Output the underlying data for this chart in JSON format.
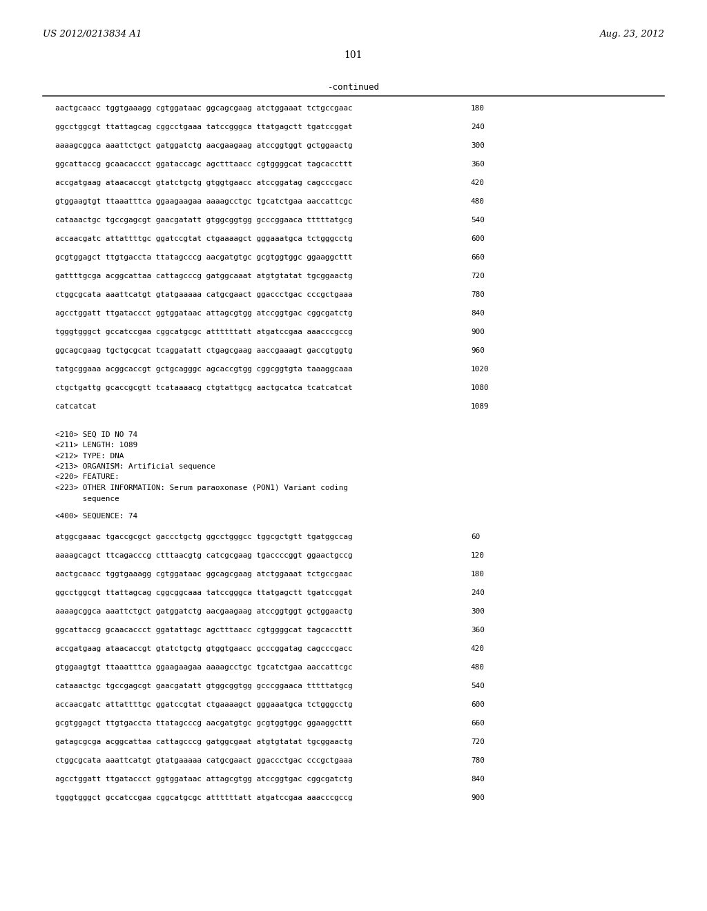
{
  "header_left": "US 2012/0213834 A1",
  "header_right": "Aug. 23, 2012",
  "page_number": "101",
  "continued_label": "-continued",
  "background_color": "#ffffff",
  "text_color": "#000000",
  "sequence_lines_top": [
    [
      "aactgcaacc tggtgaaagg cgtggataac ggcagcgaag atctggaaat tctgccgaac",
      "180"
    ],
    [
      "ggcctggcgt ttattagcag cggcctgaaa tatccgggca ttatgagctt tgatccggat",
      "240"
    ],
    [
      "aaaagcggca aaattctgct gatggatctg aacgaagaag atccggtggt gctggaactg",
      "300"
    ],
    [
      "ggcattaccg gcaacaccct ggataccagc agctttaacc cgtggggcat tagcaccttt",
      "360"
    ],
    [
      "accgatgaag ataacaccgt gtatctgctg gtggtgaacc atccggatag cagcccgacc",
      "420"
    ],
    [
      "gtggaagtgt ttaaatttca ggaagaagaa aaaagcctgc tgcatctgaa aaccattcgc",
      "480"
    ],
    [
      "cataaactgc tgccgagcgt gaacgatatt gtggcggtgg gcccggaaca tttttatgcg",
      "540"
    ],
    [
      "accaacgatc attattttgc ggatccgtat ctgaaaagct gggaaatgca tctgggcctg",
      "600"
    ],
    [
      "gcgtggagct ttgtgaccta ttatagcccg aacgatgtgc gcgtggtggc ggaaggcttt",
      "660"
    ],
    [
      "gattttgcga acggcattaa cattagcccg gatggcaaat atgtgtatat tgcggaactg",
      "720"
    ],
    [
      "ctggcgcata aaattcatgt gtatgaaaaa catgcgaact ggaccctgac cccgctgaaa",
      "780"
    ],
    [
      "agcctggatt ttgataccct ggtggataac attagcgtgg atccggtgac cggcgatctg",
      "840"
    ],
    [
      "tgggtgggct gccatccgaa cggcatgcgc attttttatt atgatccgaa aaacccgccg",
      "900"
    ],
    [
      "ggcagcgaag tgctgcgcat tcaggatatt ctgagcgaag aaccgaaagt gaccgtggtg",
      "960"
    ],
    [
      "tatgcggaaa acggcaccgt gctgcagggc agcaccgtgg cggcggtgta taaaggcaaa",
      "1020"
    ],
    [
      "ctgctgattg gcaccgcgtt tcataaaacg ctgtattgcg aactgcatca tcatcatcat",
      "1080"
    ],
    [
      "catcatcat",
      "1089"
    ]
  ],
  "seq_info_lines": [
    "<210> SEQ ID NO 74",
    "<211> LENGTH: 1089",
    "<212> TYPE: DNA",
    "<213> ORGANISM: Artificial sequence",
    "<220> FEATURE:",
    "<223> OTHER INFORMATION: Serum paraoxonase (PON1) Variant coding",
    "      sequence"
  ],
  "seq400_label": "<400> SEQUENCE: 74",
  "sequence_lines_bottom": [
    [
      "atggcgaaac tgaccgcgct gaccctgctg ggcctgggcc tggcgctgtt tgatggccag",
      "60"
    ],
    [
      "aaaagcagct ttcagacccg ctttaacgtg catcgcgaag tgaccccggt ggaactgccg",
      "120"
    ],
    [
      "aactgcaacc tggtgaaagg cgtggataac ggcagcgaag atctggaaat tctgccgaac",
      "180"
    ],
    [
      "ggcctggcgt ttattagcag cggcggcaaa tatccgggca ttatgagctt tgatccggat",
      "240"
    ],
    [
      "aaaagcggca aaattctgct gatggatctg aacgaagaag atccggtggt gctggaactg",
      "300"
    ],
    [
      "ggcattaccg gcaacaccct ggatattagc agctttaacc cgtggggcat tagcaccttt",
      "360"
    ],
    [
      "accgatgaag ataacaccgt gtatctgctg gtggtgaacc gcccggatag cagcccgacc",
      "420"
    ],
    [
      "gtggaagtgt ttaaatttca ggaagaagaa aaaagcctgc tgcatctgaa aaccattcgc",
      "480"
    ],
    [
      "cataaactgc tgccgagcgt gaacgatatt gtggcggtgg gcccggaaca tttttatgcg",
      "540"
    ],
    [
      "accaacgatc attattttgc ggatccgtat ctgaaaagct gggaaatgca tctgggcctg",
      "600"
    ],
    [
      "gcgtggagct ttgtgaccta ttatagcccg aacgatgtgc gcgtggtggc ggaaggcttt",
      "660"
    ],
    [
      "gatagcgcga acggcattaa cattagcccg gatggcgaat atgtgtatat tgcggaactg",
      "720"
    ],
    [
      "ctggcgcata aaattcatgt gtatgaaaaa catgcgaact ggaccctgac cccgctgaaa",
      "780"
    ],
    [
      "agcctggatt ttgataccct ggtggataac attagcgtgg atccggtgac cggcgatctg",
      "840"
    ],
    [
      "tgggtgggct gccatccgaa cggcatgcgc attttttatt atgatccgaa aaacccgccg",
      "900"
    ]
  ]
}
